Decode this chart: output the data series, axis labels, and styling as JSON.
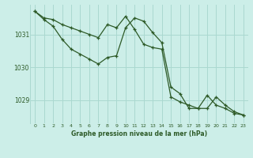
{
  "background_color": "#cceee8",
  "grid_color": "#aad8d0",
  "line_color": "#2d5a27",
  "title": "Graphe pression niveau de la mer (hPa)",
  "xlim": [
    -0.5,
    23.5
  ],
  "ylim": [
    1028.3,
    1031.9
  ],
  "yticks": [
    1029,
    1030,
    1031
  ],
  "xticks": [
    0,
    1,
    2,
    3,
    4,
    5,
    6,
    7,
    8,
    9,
    10,
    11,
    12,
    13,
    14,
    15,
    16,
    17,
    18,
    19,
    20,
    21,
    22,
    23
  ],
  "series1_x": [
    0,
    1,
    2,
    3,
    4,
    5,
    6,
    7,
    8,
    9,
    10,
    11,
    12,
    13,
    14,
    15,
    16,
    17,
    18,
    19,
    20,
    21,
    22,
    23
  ],
  "series1_y": [
    1031.7,
    1031.5,
    1031.45,
    1031.3,
    1031.2,
    1031.1,
    1031.0,
    1030.9,
    1031.3,
    1031.2,
    1031.55,
    1031.15,
    1030.7,
    1030.6,
    1030.55,
    1029.1,
    1028.95,
    1028.85,
    1028.75,
    1029.15,
    1028.85,
    1028.75,
    1028.6,
    1028.55
  ],
  "series2_x": [
    0,
    1,
    2,
    3,
    4,
    5,
    6,
    7,
    8,
    9,
    10,
    11,
    12,
    13,
    14,
    15,
    16,
    17,
    18,
    19,
    20,
    21,
    22,
    23
  ],
  "series2_y": [
    1031.7,
    1031.45,
    1031.25,
    1030.85,
    1030.55,
    1030.4,
    1030.25,
    1030.1,
    1030.3,
    1030.35,
    1031.2,
    1031.5,
    1031.4,
    1031.05,
    1030.75,
    1029.4,
    1029.2,
    1028.75,
    1028.75,
    1028.75,
    1029.1,
    1028.85,
    1028.65,
    1028.55
  ]
}
